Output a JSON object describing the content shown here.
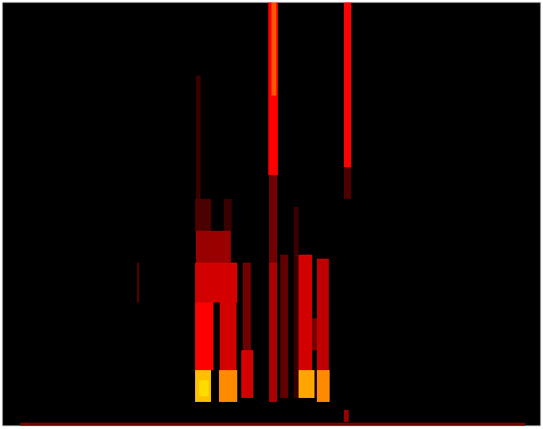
{
  "chart_data": {
    "type": "heatmap",
    "xlim": [
      0,
      676
    ],
    "ylim": [
      0,
      532
    ],
    "zlim": [
      0,
      1
    ],
    "tick_labels": false,
    "cells": [
      [
        22,
        657,
        0,
        4,
        0.3
      ],
      [
        169,
        172,
        155,
        205,
        0.2
      ],
      [
        243,
        249,
        285,
        440,
        0.15
      ],
      [
        242,
        262,
        245,
        285,
        0.2
      ],
      [
        278,
        288,
        245,
        285,
        0.15
      ],
      [
        243,
        287,
        205,
        245,
        0.4
      ],
      [
        242,
        295,
        155,
        205,
        0.55
      ],
      [
        242,
        265,
        70,
        155,
        0.6
      ],
      [
        273,
        294,
        70,
        155,
        0.55
      ],
      [
        242,
        262,
        30,
        70,
        0.95
      ],
      [
        247,
        259,
        37,
        57,
        1.0
      ],
      [
        272,
        295,
        30,
        70,
        0.85
      ],
      [
        302,
        312,
        95,
        205,
        0.3
      ],
      [
        300,
        315,
        35,
        95,
        0.55
      ],
      [
        334,
        346,
        315,
        532,
        0.6
      ],
      [
        338,
        344,
        415,
        532,
        0.75
      ],
      [
        335,
        345,
        205,
        315,
        0.3
      ],
      [
        335,
        345,
        30,
        205,
        0.45
      ],
      [
        349,
        359,
        35,
        215,
        0.25
      ],
      [
        366,
        372,
        35,
        275,
        0.15
      ],
      [
        372,
        389,
        65,
        215,
        0.55
      ],
      [
        372,
        392,
        35,
        70,
        0.9
      ],
      [
        389,
        395,
        95,
        135,
        0.3
      ],
      [
        395,
        410,
        70,
        210,
        0.5
      ],
      [
        395,
        411,
        30,
        70,
        0.85
      ],
      [
        429,
        438,
        325,
        532,
        0.6
      ],
      [
        429,
        438,
        285,
        325,
        0.2
      ],
      [
        429,
        435,
        5,
        20,
        0.4
      ]
    ]
  }
}
